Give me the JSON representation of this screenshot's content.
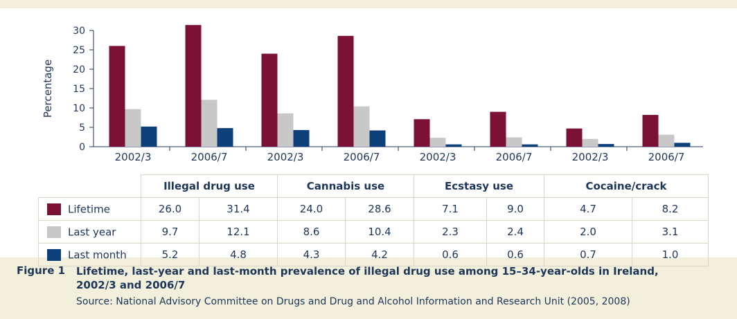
{
  "chart_data": {
    "type": "bar",
    "ylabel": "Percentage",
    "ylim": [
      0,
      30
    ],
    "yticks": [
      0,
      5,
      10,
      15,
      20,
      25,
      30
    ],
    "categories": [
      "2002/3",
      "2006/7",
      "2002/3",
      "2006/7",
      "2002/3",
      "2006/7",
      "2002/3",
      "2006/7"
    ],
    "groups": [
      "Illegal drug use",
      "Cannabis use",
      "Ecstasy use",
      "Cocaine/crack"
    ],
    "series": [
      {
        "name": "Lifetime",
        "color": "#7b1135",
        "values": [
          26.0,
          31.4,
          24.0,
          28.6,
          7.1,
          9.0,
          4.7,
          8.2
        ]
      },
      {
        "name": "Last year",
        "color": "#c8c8c8",
        "values": [
          9.7,
          12.1,
          8.6,
          10.4,
          2.3,
          2.4,
          2.0,
          3.1
        ]
      },
      {
        "name": "Last month",
        "color": "#0d3f7a",
        "values": [
          5.2,
          4.8,
          4.3,
          4.2,
          0.6,
          0.6,
          0.7,
          1.0
        ]
      }
    ],
    "table": {
      "rows": [
        {
          "label": "Lifetime",
          "cells": [
            "26.0",
            "31.4",
            "24.0",
            "28.6",
            "7.1",
            "9.0",
            "4.7",
            "8.2"
          ]
        },
        {
          "label": "Last year",
          "cells": [
            "9.7",
            "12.1",
            "8.6",
            "10.4",
            "2.3",
            "2.4",
            "2.0",
            "3.1"
          ]
        },
        {
          "label": "Last month",
          "cells": [
            "5.2",
            "4.8",
            "4.3",
            "4.2",
            "0.6",
            "0.6",
            "0.7",
            "1.0"
          ]
        }
      ]
    }
  },
  "caption": {
    "figure_number": "Figure 1",
    "title": "Lifetime, last-year and last-month prevalence of illegal drug use among 15–34-year-olds in Ireland, 2002/3 and 2006/7",
    "source": "Source: National Advisory Committee on Drugs and Drug and Alcohol Information and Research Unit (2005, 2008)"
  },
  "colors": {
    "background": "#f2f0dc",
    "panel": "#ffffff",
    "text": "#1d3557"
  }
}
